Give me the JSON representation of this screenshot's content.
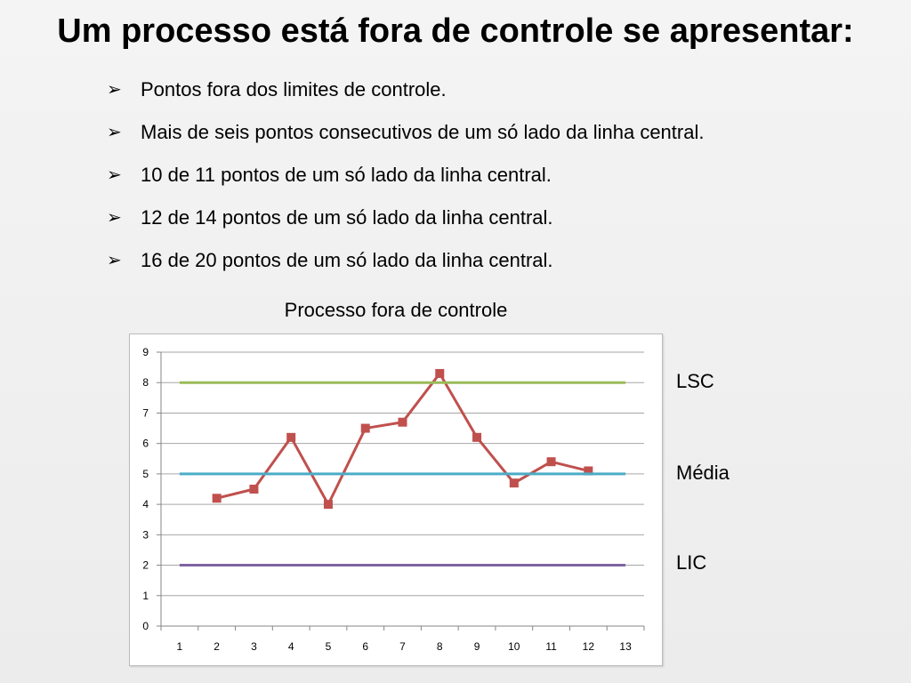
{
  "slide": {
    "title": "Um processo está fora de controle se apresentar:",
    "bullets": [
      "Pontos fora dos limites de controle.",
      "Mais de seis pontos consecutivos de um só lado da linha central.",
      "10 de 11 pontos de um só lado da linha central.",
      "12 de 14 pontos de um só lado da linha central.",
      "16 de 20 pontos de um só lado da linha central."
    ],
    "bullet_icon": "arrow-bullet-icon",
    "bullet_glyph": "➢"
  },
  "chart_data": {
    "type": "line",
    "title": "Processo fora de controle",
    "xlabel": "",
    "ylabel": "",
    "x": [
      1,
      2,
      3,
      4,
      5,
      6,
      7,
      8,
      9,
      10,
      11,
      12,
      13
    ],
    "xlim": [
      1,
      13
    ],
    "ylim": [
      0,
      9
    ],
    "yticks": [
      0,
      1,
      2,
      3,
      4,
      5,
      6,
      7,
      8,
      9
    ],
    "grid": true,
    "series": [
      {
        "key": "process",
        "x": [
          2,
          3,
          4,
          5,
          6,
          7,
          8,
          9,
          10,
          11,
          12
        ],
        "values": [
          4.2,
          4.5,
          6.2,
          4.0,
          6.5,
          6.7,
          8.3,
          6.2,
          4.7,
          5.4,
          5.1
        ],
        "color": "#c0504d",
        "marker": "square"
      },
      {
        "name": "LSC",
        "key": "lsc",
        "x": [
          1,
          13
        ],
        "values": [
          8,
          8
        ],
        "color": "#9bbb59"
      },
      {
        "name": "Média",
        "key": "media",
        "x": [
          1,
          13
        ],
        "values": [
          5,
          5
        ],
        "color": "#4bacc6"
      },
      {
        "name": "LIC",
        "key": "lic",
        "x": [
          1,
          13
        ],
        "values": [
          2,
          2
        ],
        "color": "#8064a2"
      }
    ],
    "legend_placement": "right (labels beside lines)"
  }
}
